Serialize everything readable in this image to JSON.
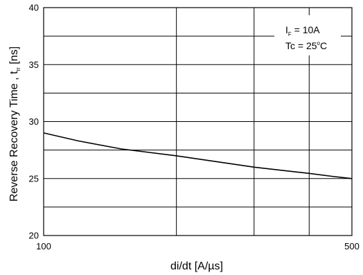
{
  "chart_data": {
    "type": "line",
    "xscale": "log",
    "xlim": [
      100,
      500
    ],
    "ylim": [
      20,
      40
    ],
    "x_ticks": [
      "100",
      "500"
    ],
    "y_ticks": [
      "20",
      "25",
      "30",
      "35",
      "40"
    ],
    "x_gridlines": [
      200,
      300,
      400
    ],
    "y_gridlines": [
      22.5,
      25,
      27.5,
      30,
      32.5,
      35,
      37.5
    ],
    "grid": true,
    "xlabel": "di/dt [A/µs]",
    "ylabel_main": "Reverse Recovery Time , t",
    "ylabel_sub": "rr",
    "ylabel_unit": " [ns]",
    "series": [
      {
        "x": [
          100,
          120,
          150,
          200,
          250,
          300,
          350,
          400,
          450,
          500
        ],
        "y": [
          29.0,
          28.3,
          27.6,
          27.0,
          26.45,
          26.0,
          25.7,
          25.45,
          25.2,
          25.0
        ]
      }
    ],
    "annotation": {
      "line1_main": "I",
      "line1_sub": "F",
      "line1_rest": " = 10A",
      "line2_main": "Tc = 25",
      "line2_sup": "o",
      "line2_rest": "C"
    }
  }
}
